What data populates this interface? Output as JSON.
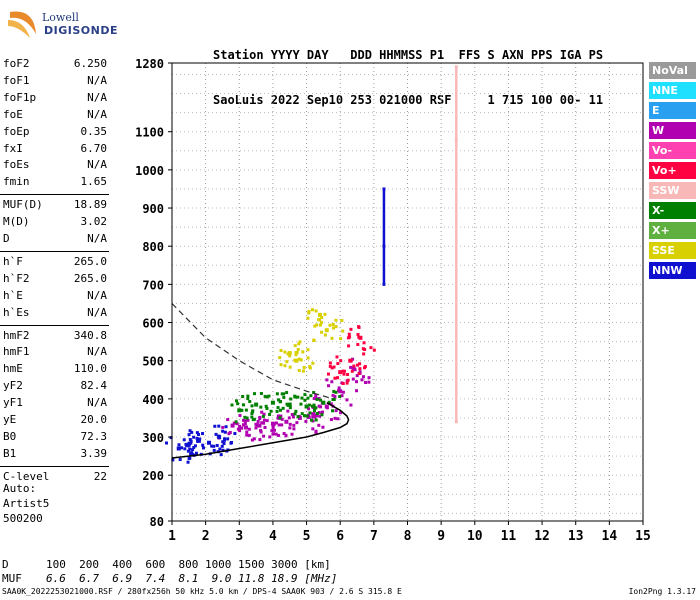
{
  "logo": {
    "line1": "Lowell",
    "line2": "DIGISONDE"
  },
  "header": {
    "line1": "Station YYYY DAY   DDD HHMMSS P1  FFS S AXN PPS IGA PS",
    "line2": "SaoLuis 2022 Sep10 253 021000 RSF     1 715 100 00- 11"
  },
  "params": {
    "group1": [
      {
        "label": "foF2",
        "value": "6.250"
      },
      {
        "label": "foF1",
        "value": "N/A"
      },
      {
        "label": "foF1p",
        "value": "N/A"
      },
      {
        "label": "foE",
        "value": "N/A"
      },
      {
        "label": "foEp",
        "value": "0.35"
      },
      {
        "label": "fxI",
        "value": "6.70"
      },
      {
        "label": "foEs",
        "value": "N/A"
      },
      {
        "label": "fmin",
        "value": "1.65"
      }
    ],
    "group2": [
      {
        "label": "MUF(D)",
        "value": "18.89"
      },
      {
        "label": "M(D)",
        "value": "3.02"
      },
      {
        "label": "D",
        "value": "N/A"
      }
    ],
    "group3": [
      {
        "label": "h`F",
        "value": "265.0"
      },
      {
        "label": "h`F2",
        "value": "265.0"
      },
      {
        "label": "h`E",
        "value": "N/A"
      },
      {
        "label": "h`Es",
        "value": "N/A"
      }
    ],
    "group4": [
      {
        "label": "hmF2",
        "value": "340.8"
      },
      {
        "label": "hmF1",
        "value": "N/A"
      },
      {
        "label": "hmE",
        "value": "110.0"
      },
      {
        "label": "yF2",
        "value": "82.4"
      },
      {
        "label": "yF1",
        "value": "N/A"
      },
      {
        "label": "yE",
        "value": "20.0"
      },
      {
        "label": "B0",
        "value": "72.3"
      },
      {
        "label": "B1",
        "value": "3.39"
      }
    ],
    "group5": [
      {
        "label": "C-level",
        "value": "22"
      }
    ]
  },
  "auto_block": {
    "line1": "Auto:",
    "line2": "Artist5",
    "line3": "500200"
  },
  "scales": {
    "d_label": "D",
    "d_values": "100  200  400  600  800 1000 1500 3000 [km]",
    "muf_label": "MUF",
    "muf_values": "6.6  6.7  6.9  7.4  8.1  9.0 11.8 18.9 [MHz]"
  },
  "footer": "SAA0K_2022253021000.RSF / 280fx256h 50 kHz 5.0 km / DPS-4 SAA0K 903 / 2.6 S 315.8 E",
  "version": "Ion2Png 1.3.17",
  "legend": [
    {
      "label": "NoVal",
      "color": "#9a9a9a"
    },
    {
      "label": "NNE",
      "color": "#20e0ff"
    },
    {
      "label": "E",
      "color": "#2aa0f0"
    },
    {
      "label": "W",
      "color": "#b000b0"
    },
    {
      "label": "Vo-",
      "color": "#ff40b0"
    },
    {
      "label": "Vo+",
      "color": "#ff0040"
    },
    {
      "label": "SSW",
      "color": "#f8b8b8"
    },
    {
      "label": "X-",
      "color": "#008000"
    },
    {
      "label": "X+",
      "color": "#60b040"
    },
    {
      "label": "SSE",
      "color": "#d8d000"
    },
    {
      "label": "NNW",
      "color": "#1010d0"
    }
  ],
  "chart_data": {
    "type": "scatter",
    "title": "",
    "xlabel": "",
    "ylabel": "",
    "xlim": [
      1,
      15
    ],
    "ylim": [
      80,
      1280
    ],
    "x_ticks": [
      1,
      2,
      3,
      4,
      5,
      6,
      7,
      8,
      9,
      10,
      11,
      12,
      13,
      14,
      15
    ],
    "y_ticks": [
      80,
      200,
      300,
      400,
      500,
      600,
      700,
      800,
      900,
      1000,
      1100,
      1280
    ],
    "grid": true,
    "ordinary_trace": {
      "description_values": "virtual height vs frequency (MHz, km)",
      "x": [
        1.0,
        2.0,
        3.0,
        4.0,
        5.0,
        5.5,
        6.0,
        6.2,
        6.25,
        6.2,
        6.0,
        5.6
      ],
      "y": [
        245,
        255,
        270,
        285,
        300,
        312,
        325,
        335,
        345,
        355,
        370,
        390
      ]
    },
    "extraordinary_trace": {
      "x": [
        1.0,
        2.0,
        3.0,
        4.0,
        5.0,
        5.8
      ],
      "y": [
        650,
        560,
        500,
        450,
        420,
        400
      ]
    },
    "echo_clusters": [
      {
        "series": "W",
        "x": [
          2.8,
          3.2,
          3.6,
          4.0,
          4.4,
          4.8,
          5.2,
          5.6,
          6.0,
          6.4
        ],
        "y": [
          330,
          325,
          330,
          335,
          340,
          350,
          360,
          380,
          420,
          480
        ]
      },
      {
        "series": "X-",
        "x": [
          3.0,
          3.5,
          4.0,
          4.5,
          5.0,
          5.5
        ],
        "y": [
          370,
          385,
          390,
          385,
          380,
          390
        ]
      },
      {
        "series": "NNW",
        "x": [
          1.2,
          1.5,
          1.8,
          2.1,
          2.4
        ],
        "y": [
          270,
          280,
          290,
          285,
          300
        ]
      },
      {
        "series": "NNW",
        "x": [
          7.3,
          7.3,
          7.3
        ],
        "y": [
          950,
          800,
          700
        ]
      },
      {
        "series": "SSW",
        "x": [
          9.45,
          9.45,
          9.45
        ],
        "y": [
          1270,
          1080,
          340
        ]
      },
      {
        "series": "SSE",
        "x": [
          5.4,
          5.6,
          4.5,
          4.7
        ],
        "y": [
          620,
          580,
          520,
          500
        ]
      },
      {
        "series": "Vo+",
        "x": [
          6.0,
          6.3,
          6.6
        ],
        "y": [
          470,
          500,
          560
        ]
      }
    ]
  }
}
